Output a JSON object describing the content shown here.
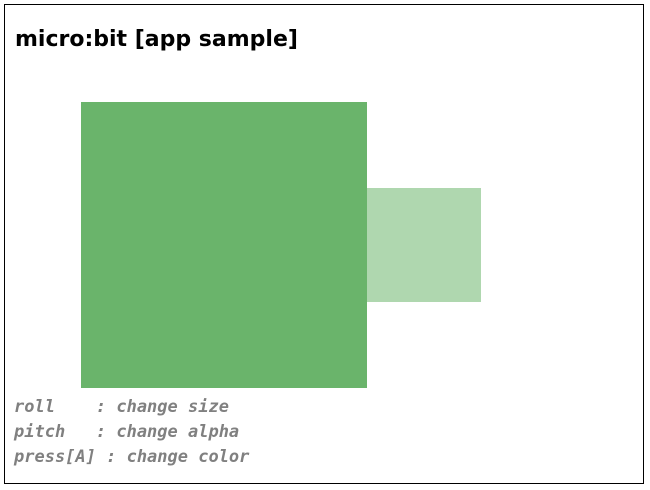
{
  "app": {
    "title": "micro:bit [app sample]"
  },
  "canvas": {
    "big_square_color": "#6ab46b",
    "small_square_color": "#afd7af"
  },
  "instructions": [
    "roll    : change size",
    "pitch   : change alpha",
    "press[A] : change color"
  ]
}
